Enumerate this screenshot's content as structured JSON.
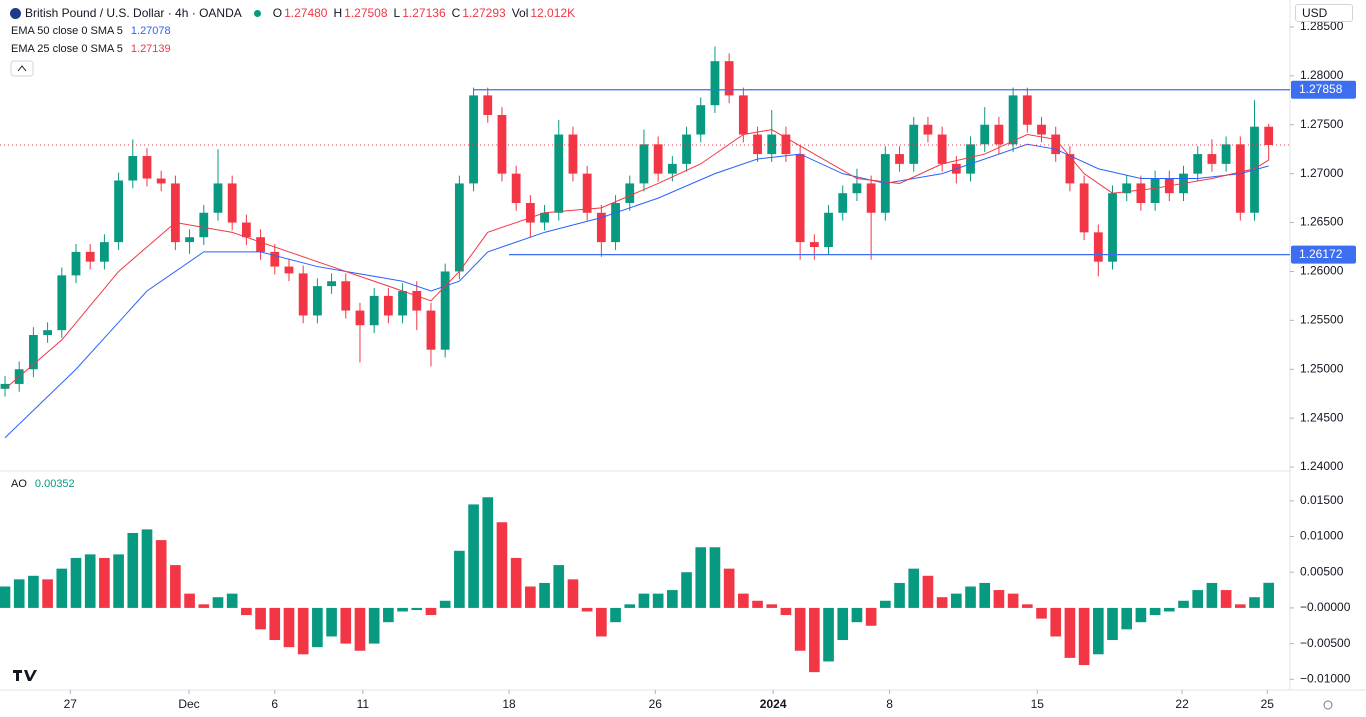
{
  "chart_data": [
    {
      "type": "candlestick",
      "title": "British Pound / U.S. Dollar · 4h · OANDA",
      "currency": "USD",
      "legend_values": [
        {
          "label": "O",
          "value": "1.27480"
        },
        {
          "label": "H",
          "value": "1.27508"
        },
        {
          "label": "L",
          "value": "1.27136"
        },
        {
          "label": "C",
          "value": "1.27293"
        },
        {
          "label": "Vol",
          "value": "12.012K"
        }
      ],
      "up_color": "#089981",
      "down_color": "#f23645",
      "open": [
        1.248,
        1.2485,
        1.25,
        1.2535,
        1.254,
        1.2596,
        1.262,
        1.261,
        1.263,
        1.2693,
        1.2718,
        1.2695,
        1.269,
        1.263,
        1.2635,
        1.266,
        1.269,
        1.265,
        1.2635,
        1.262,
        1.2605,
        1.2598,
        1.2555,
        1.2585,
        1.259,
        1.256,
        1.2545,
        1.2575,
        1.2555,
        1.258,
        1.256,
        1.252,
        1.26,
        1.269,
        1.278,
        1.276,
        1.27,
        1.267,
        1.265,
        1.266,
        1.274,
        1.27,
        1.266,
        1.263,
        1.267,
        1.269,
        1.273,
        1.27,
        1.271,
        1.274,
        1.277,
        1.2815,
        1.278,
        1.274,
        1.272,
        1.274,
        1.272,
        1.263,
        1.2625,
        1.266,
        1.268,
        1.269,
        1.266,
        1.272,
        1.271,
        1.275,
        1.274,
        1.271,
        1.27,
        1.273,
        1.275,
        1.273,
        1.278,
        1.275,
        1.274,
        1.272,
        1.269,
        1.264,
        1.261,
        1.268,
        1.269,
        1.267,
        1.2695,
        1.268,
        1.27,
        1.272,
        1.271,
        1.273,
        1.266,
        1.2748
      ],
      "high": [
        1.2493,
        1.2508,
        1.2543,
        1.2548,
        1.2604,
        1.2628,
        1.2628,
        1.2638,
        1.2701,
        1.2735,
        1.2726,
        1.2703,
        1.2698,
        1.2643,
        1.2668,
        1.2725,
        1.2698,
        1.2658,
        1.2643,
        1.2628,
        1.2613,
        1.2606,
        1.2593,
        1.2598,
        1.2598,
        1.2568,
        1.2583,
        1.2583,
        1.2588,
        1.259,
        1.2568,
        1.2608,
        1.2698,
        1.2788,
        1.2788,
        1.2768,
        1.2708,
        1.2678,
        1.2668,
        1.2755,
        1.2748,
        1.2708,
        1.2668,
        1.2678,
        1.2698,
        1.2745,
        1.2738,
        1.2718,
        1.2748,
        1.2778,
        1.283,
        1.2823,
        1.2788,
        1.2748,
        1.2765,
        1.2748,
        1.2728,
        1.2638,
        1.2668,
        1.2688,
        1.2705,
        1.2698,
        1.2728,
        1.2728,
        1.2758,
        1.2758,
        1.2748,
        1.2718,
        1.2738,
        1.2768,
        1.2758,
        1.2788,
        1.2788,
        1.2758,
        1.2748,
        1.2728,
        1.2698,
        1.2648,
        1.2688,
        1.2698,
        1.2698,
        1.2703,
        1.2703,
        1.2708,
        1.2728,
        1.2735,
        1.2738,
        1.2738,
        1.2775,
        1.27508
      ],
      "low": [
        1.2472,
        1.2477,
        1.2492,
        1.2527,
        1.2532,
        1.2588,
        1.2602,
        1.2602,
        1.2622,
        1.2685,
        1.2687,
        1.2682,
        1.2622,
        1.2618,
        1.2627,
        1.2652,
        1.2642,
        1.2627,
        1.2612,
        1.2597,
        1.259,
        1.2547,
        1.2547,
        1.2577,
        1.2552,
        1.2507,
        1.2537,
        1.2547,
        1.2547,
        1.254,
        1.2503,
        1.2512,
        1.2592,
        1.2682,
        1.2752,
        1.2692,
        1.2662,
        1.2635,
        1.2642,
        1.2652,
        1.2692,
        1.2652,
        1.2615,
        1.2622,
        1.2662,
        1.2682,
        1.2692,
        1.2692,
        1.2702,
        1.2732,
        1.2762,
        1.2772,
        1.2732,
        1.2712,
        1.2712,
        1.2712,
        1.2612,
        1.2612,
        1.2617,
        1.2652,
        1.2672,
        1.2612,
        1.2652,
        1.2702,
        1.2702,
        1.2732,
        1.2702,
        1.269,
        1.2692,
        1.2722,
        1.272,
        1.2722,
        1.2742,
        1.2732,
        1.2712,
        1.2682,
        1.2632,
        1.2595,
        1.2602,
        1.2672,
        1.2662,
        1.2662,
        1.2672,
        1.2672,
        1.2692,
        1.2702,
        1.2702,
        1.2652,
        1.2652,
        1.27136
      ],
      "close": [
        1.2485,
        1.25,
        1.2535,
        1.254,
        1.2596,
        1.262,
        1.261,
        1.263,
        1.2693,
        1.2718,
        1.2695,
        1.269,
        1.263,
        1.2635,
        1.266,
        1.269,
        1.265,
        1.2635,
        1.262,
        1.2605,
        1.2598,
        1.2555,
        1.2585,
        1.259,
        1.256,
        1.2545,
        1.2575,
        1.2555,
        1.258,
        1.256,
        1.252,
        1.26,
        1.269,
        1.278,
        1.276,
        1.27,
        1.267,
        1.265,
        1.266,
        1.274,
        1.27,
        1.266,
        1.263,
        1.267,
        1.269,
        1.273,
        1.27,
        1.271,
        1.274,
        1.277,
        1.2815,
        1.278,
        1.274,
        1.272,
        1.274,
        1.272,
        1.263,
        1.2625,
        1.266,
        1.268,
        1.269,
        1.266,
        1.272,
        1.271,
        1.275,
        1.274,
        1.271,
        1.27,
        1.273,
        1.275,
        1.273,
        1.278,
        1.275,
        1.274,
        1.272,
        1.269,
        1.264,
        1.261,
        1.268,
        1.269,
        1.267,
        1.2695,
        1.268,
        1.27,
        1.272,
        1.271,
        1.273,
        1.266,
        1.2748,
        1.27293
      ],
      "series": [
        {
          "name": "EMA 50 close 0 SMA 5",
          "last_label": "1.27078",
          "color": "#2962ff",
          "x": [
            0,
            5,
            10,
            14,
            18,
            22,
            28,
            30,
            32,
            34,
            38,
            42,
            46,
            50,
            53,
            56,
            59,
            62,
            66,
            69,
            72,
            74,
            77,
            80,
            84,
            87,
            89
          ],
          "values": [
            1.243,
            1.25,
            1.258,
            1.262,
            1.262,
            1.2605,
            1.259,
            1.258,
            1.259,
            1.262,
            1.264,
            1.2655,
            1.2675,
            1.27,
            1.2715,
            1.272,
            1.27,
            1.269,
            1.27,
            1.2715,
            1.273,
            1.2725,
            1.2705,
            1.2695,
            1.2695,
            1.27,
            1.27078
          ]
        },
        {
          "name": "EMA 25 close 0 SMA 5",
          "last_label": "1.27139",
          "color": "#f23645",
          "x": [
            0,
            4,
            8,
            12,
            16,
            22,
            28,
            30,
            32,
            34,
            38,
            42,
            46,
            49,
            52,
            54,
            57,
            60,
            63,
            66,
            69,
            72,
            74,
            76,
            78,
            81,
            85,
            88,
            89
          ],
          "values": [
            1.248,
            1.253,
            1.26,
            1.265,
            1.264,
            1.261,
            1.258,
            1.257,
            1.26,
            1.264,
            1.266,
            1.2665,
            1.269,
            1.271,
            1.274,
            1.2745,
            1.272,
            1.2695,
            1.269,
            1.271,
            1.272,
            1.274,
            1.2735,
            1.27,
            1.268,
            1.2685,
            1.2695,
            1.2705,
            1.27139
          ]
        }
      ],
      "levels": [
        {
          "value": 1.27858,
          "color": "#3d6ef0"
        },
        {
          "value": 1.26172,
          "color": "#3d6ef0"
        }
      ],
      "xlim": [
        0,
        90.5
      ],
      "ylim": [
        1.2397,
        1.2853
      ],
      "yticks": [
        {
          "value": 1.24,
          "label": "1.24000"
        },
        {
          "value": 1.245,
          "label": "1.24500"
        },
        {
          "value": 1.25,
          "label": "1.25000"
        },
        {
          "value": 1.255,
          "label": "1.25500"
        },
        {
          "value": 1.26,
          "label": "1.26000"
        },
        {
          "value": 1.265,
          "label": "1.26500"
        },
        {
          "value": 1.27,
          "label": "1.27000"
        },
        {
          "value": 1.275,
          "label": "1.27500"
        },
        {
          "value": 1.28,
          "label": "1.28000"
        },
        {
          "value": 1.285,
          "label": "1.28500"
        }
      ]
    },
    {
      "type": "histogram",
      "title": "AO",
      "last_label": "0.00352",
      "up_color": "#089981",
      "down_color": "#f23645",
      "values": [
        0.003,
        0.004,
        0.0045,
        0.004,
        0.0055,
        0.007,
        0.0075,
        0.007,
        0.0075,
        0.0105,
        0.011,
        0.0095,
        0.006,
        0.002,
        0.0005,
        0.0015,
        0.002,
        -0.001,
        -0.003,
        -0.0045,
        -0.0055,
        -0.0065,
        -0.0055,
        -0.004,
        -0.005,
        -0.006,
        -0.005,
        -0.002,
        -0.0005,
        -0.0003,
        -0.001,
        0.001,
        0.008,
        0.0145,
        0.0155,
        0.012,
        0.007,
        0.003,
        0.0035,
        0.006,
        0.004,
        -0.0005,
        -0.004,
        -0.002,
        0.0005,
        0.002,
        0.002,
        0.0025,
        0.005,
        0.0085,
        0.0085,
        0.0055,
        0.002,
        0.001,
        0.0005,
        -0.001,
        -0.006,
        -0.009,
        -0.0075,
        -0.0045,
        -0.002,
        -0.0025,
        0.001,
        0.0035,
        0.0055,
        0.0045,
        0.0015,
        0.002,
        0.003,
        0.0035,
        0.0025,
        0.002,
        0.0005,
        -0.0015,
        -0.004,
        -0.007,
        -0.008,
        -0.0065,
        -0.0045,
        -0.003,
        -0.002,
        -0.001,
        -0.0005,
        0.001,
        0.0025,
        0.0035,
        0.0025,
        0.0005,
        0.0015,
        0.00352
      ],
      "xlim": [
        0,
        90.5
      ],
      "ylim": [
        -0.0115,
        0.0189
      ],
      "yticks": [
        {
          "value": 0.015,
          "label": "0.01500"
        },
        {
          "value": 0.01,
          "label": "0.01000"
        },
        {
          "value": 0.005,
          "label": "0.00500"
        },
        {
          "value": 0,
          "label": "−0.00000"
        },
        {
          "value": -0.005,
          "label": "−0.00500"
        },
        {
          "value": -0.01,
          "label": "−0.01000"
        }
      ],
      "xticks": [
        {
          "value": 4.6,
          "label": "27"
        },
        {
          "value": 12.96,
          "label": "Dec"
        },
        {
          "value": 19,
          "label": "6"
        },
        {
          "value": 25.2,
          "label": "11"
        },
        {
          "value": 35.5,
          "label": "18"
        },
        {
          "value": 45.8,
          "label": "26"
        },
        {
          "value": 54.1,
          "label": "2024"
        },
        {
          "value": 62.3,
          "label": "8"
        },
        {
          "value": 72.7,
          "label": "15"
        },
        {
          "value": 82.9,
          "label": "22"
        },
        {
          "value": 88.9,
          "label": "25"
        }
      ]
    }
  ]
}
